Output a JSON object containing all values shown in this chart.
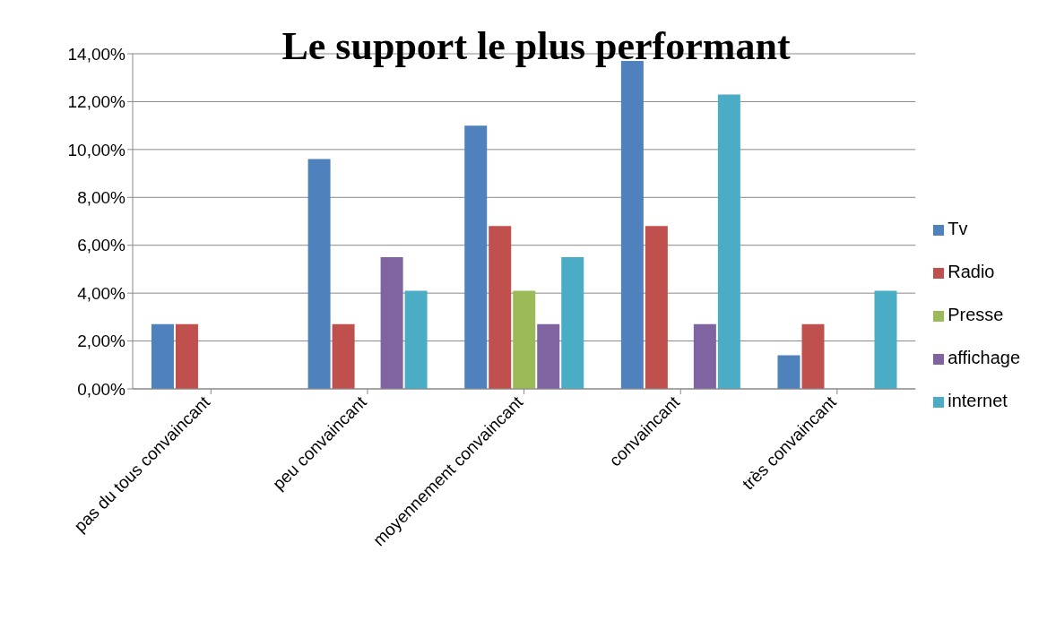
{
  "chart_data": {
    "type": "bar",
    "title": "Le support le plus performant",
    "categories": [
      "pas du tous convaincant",
      "peu  convaincant",
      "moyennement  convaincant",
      "convaincant",
      "très  convaincant"
    ],
    "series": [
      {
        "name": "Tv",
        "color": "#4f81bd",
        "values": [
          2.7,
          9.6,
          11.0,
          13.7,
          1.4
        ]
      },
      {
        "name": "Radio",
        "color": "#c0504d",
        "values": [
          2.7,
          2.7,
          6.8,
          6.8,
          2.7
        ]
      },
      {
        "name": "Presse",
        "color": "#9bbb59",
        "values": [
          0,
          0,
          4.1,
          0,
          0
        ]
      },
      {
        "name": "affichage",
        "color": "#8064a2",
        "values": [
          0,
          5.5,
          2.7,
          2.7,
          0
        ]
      },
      {
        "name": "internet",
        "color": "#4bacc6",
        "values": [
          0,
          4.1,
          5.5,
          12.3,
          4.1
        ]
      }
    ],
    "ylim": [
      0,
      14
    ],
    "yticks": [
      {
        "value": 0,
        "label": "0,00%"
      },
      {
        "value": 2,
        "label": "2,00%"
      },
      {
        "value": 4,
        "label": "4,00%"
      },
      {
        "value": 6,
        "label": "6,00%"
      },
      {
        "value": 8,
        "label": "8,00%"
      },
      {
        "value": 10,
        "label": "10,00%"
      },
      {
        "value": 12,
        "label": "12,00%"
      },
      {
        "value": 14,
        "label": "14,00%"
      }
    ],
    "grid": "y",
    "legend": "right"
  }
}
